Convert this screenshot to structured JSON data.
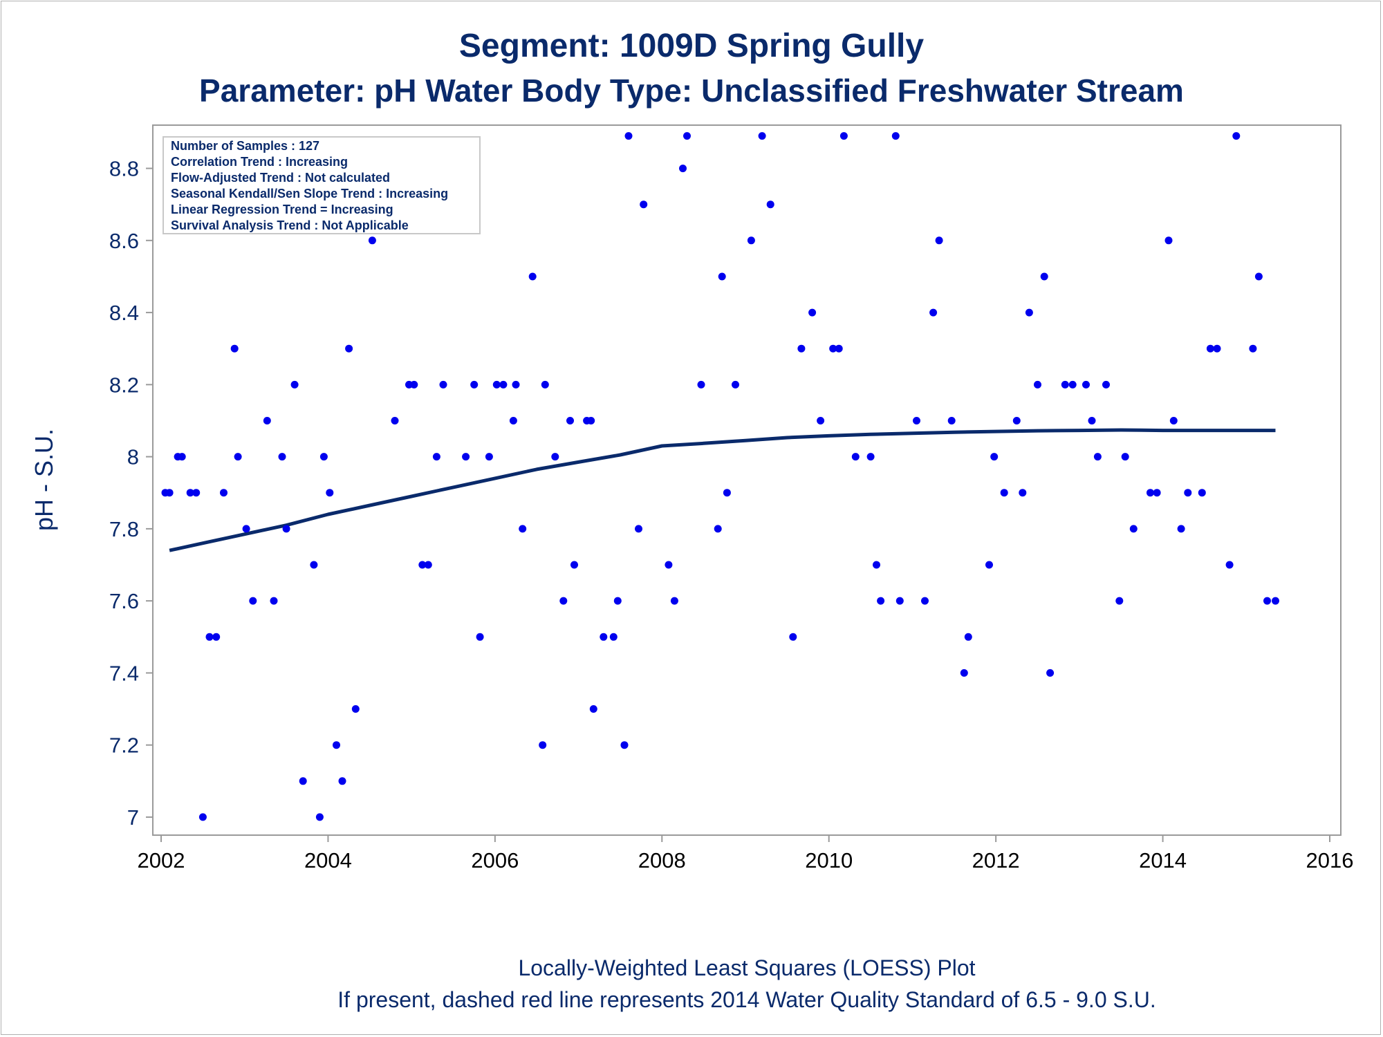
{
  "chart_data": {
    "type": "scatter",
    "title": "Segment: 1009D  Spring Gully",
    "subtitle": "Parameter: pH   Water Body Type: Unclassified Freshwater Stream",
    "xlabel": "",
    "ylabel": "pH - S.U.",
    "xlim": [
      2002,
      2016
    ],
    "ylim": [
      6.95,
      8.92
    ],
    "xticks": [
      2002,
      2004,
      2006,
      2008,
      2010,
      2012,
      2014,
      2016
    ],
    "yticks": [
      7,
      7.2,
      7.4,
      7.6,
      7.8,
      8,
      8.2,
      8.4,
      8.6,
      8.8
    ],
    "ytick_labels": [
      "7",
      "7.2",
      "7.4",
      "7.6",
      "7.8",
      "8",
      "8.2",
      "8.4",
      "8.6",
      "8.8"
    ],
    "grid": false,
    "legend": "none",
    "point_color": "#0000ee",
    "line_color": "#0a2a6b",
    "points": [
      [
        2002.05,
        7.9
      ],
      [
        2002.1,
        7.9
      ],
      [
        2002.2,
        8.0
      ],
      [
        2002.25,
        8.0
      ],
      [
        2002.35,
        7.9
      ],
      [
        2002.42,
        7.9
      ],
      [
        2002.5,
        7.0
      ],
      [
        2002.58,
        7.5
      ],
      [
        2002.66,
        7.5
      ],
      [
        2002.75,
        7.9
      ],
      [
        2002.88,
        8.3
      ],
      [
        2002.92,
        8.0
      ],
      [
        2003.02,
        7.8
      ],
      [
        2003.1,
        7.6
      ],
      [
        2003.27,
        8.1
      ],
      [
        2003.35,
        7.6
      ],
      [
        2003.45,
        8.0
      ],
      [
        2003.5,
        7.8
      ],
      [
        2003.6,
        8.2
      ],
      [
        2003.7,
        7.1
      ],
      [
        2003.83,
        7.7
      ],
      [
        2003.9,
        7.0
      ],
      [
        2003.95,
        8.0
      ],
      [
        2004.02,
        7.9
      ],
      [
        2004.1,
        7.2
      ],
      [
        2004.17,
        7.1
      ],
      [
        2004.25,
        8.3
      ],
      [
        2004.33,
        7.3
      ],
      [
        2004.53,
        8.6
      ],
      [
        2004.8,
        8.1
      ],
      [
        2004.97,
        8.2
      ],
      [
        2005.03,
        8.2
      ],
      [
        2005.13,
        7.7
      ],
      [
        2005.2,
        7.7
      ],
      [
        2005.3,
        8.0
      ],
      [
        2005.38,
        8.2
      ],
      [
        2005.65,
        8.0
      ],
      [
        2005.75,
        8.2
      ],
      [
        2005.82,
        7.5
      ],
      [
        2005.93,
        8.0
      ],
      [
        2006.02,
        8.2
      ],
      [
        2006.1,
        8.2
      ],
      [
        2006.22,
        8.1
      ],
      [
        2006.25,
        8.2
      ],
      [
        2006.33,
        7.8
      ],
      [
        2006.45,
        8.5
      ],
      [
        2006.57,
        7.2
      ],
      [
        2006.6,
        8.2
      ],
      [
        2006.72,
        8.0
      ],
      [
        2006.82,
        7.6
      ],
      [
        2006.9,
        8.1
      ],
      [
        2006.95,
        7.7
      ],
      [
        2007.1,
        8.1
      ],
      [
        2007.15,
        8.1
      ],
      [
        2007.18,
        7.3
      ],
      [
        2007.3,
        7.5
      ],
      [
        2007.42,
        7.5
      ],
      [
        2007.47,
        7.6
      ],
      [
        2007.55,
        7.2
      ],
      [
        2007.6,
        8.89
      ],
      [
        2007.72,
        7.8
      ],
      [
        2007.78,
        8.7
      ],
      [
        2008.08,
        7.7
      ],
      [
        2008.15,
        7.6
      ],
      [
        2008.25,
        8.8
      ],
      [
        2008.3,
        8.89
      ],
      [
        2008.47,
        8.2
      ],
      [
        2008.67,
        7.8
      ],
      [
        2008.72,
        8.5
      ],
      [
        2008.78,
        7.9
      ],
      [
        2008.88,
        8.2
      ],
      [
        2009.07,
        8.6
      ],
      [
        2009.2,
        8.89
      ],
      [
        2009.3,
        8.7
      ],
      [
        2009.57,
        7.5
      ],
      [
        2009.67,
        8.3
      ],
      [
        2009.8,
        8.4
      ],
      [
        2009.9,
        8.1
      ],
      [
        2010.05,
        8.3
      ],
      [
        2010.12,
        8.3
      ],
      [
        2010.18,
        8.89
      ],
      [
        2010.32,
        8.0
      ],
      [
        2010.5,
        8.0
      ],
      [
        2010.57,
        7.7
      ],
      [
        2010.62,
        7.6
      ],
      [
        2010.8,
        8.89
      ],
      [
        2010.85,
        7.6
      ],
      [
        2011.05,
        8.1
      ],
      [
        2011.15,
        7.6
      ],
      [
        2011.25,
        8.4
      ],
      [
        2011.32,
        8.6
      ],
      [
        2011.47,
        8.1
      ],
      [
        2011.62,
        7.4
      ],
      [
        2011.67,
        7.5
      ],
      [
        2011.92,
        7.7
      ],
      [
        2011.98,
        8.0
      ],
      [
        2012.1,
        7.9
      ],
      [
        2012.25,
        8.1
      ],
      [
        2012.32,
        7.9
      ],
      [
        2012.4,
        8.4
      ],
      [
        2012.5,
        8.2
      ],
      [
        2012.58,
        8.5
      ],
      [
        2012.65,
        7.4
      ],
      [
        2012.83,
        8.2
      ],
      [
        2012.92,
        8.2
      ],
      [
        2013.08,
        8.2
      ],
      [
        2013.15,
        8.1
      ],
      [
        2013.22,
        8.0
      ],
      [
        2013.32,
        8.2
      ],
      [
        2013.48,
        7.6
      ],
      [
        2013.55,
        8.0
      ],
      [
        2013.65,
        7.8
      ],
      [
        2013.85,
        7.9
      ],
      [
        2013.93,
        7.9
      ],
      [
        2014.07,
        8.6
      ],
      [
        2014.13,
        8.1
      ],
      [
        2014.22,
        7.8
      ],
      [
        2014.3,
        7.9
      ],
      [
        2014.47,
        7.9
      ],
      [
        2014.57,
        8.3
      ],
      [
        2014.65,
        8.3
      ],
      [
        2014.8,
        7.7
      ],
      [
        2014.88,
        8.89
      ],
      [
        2015.08,
        8.3
      ],
      [
        2015.15,
        8.5
      ],
      [
        2015.25,
        7.6
      ],
      [
        2015.35,
        7.6
      ]
    ],
    "loess": [
      [
        2002.1,
        7.74
      ],
      [
        2002.5,
        7.76
      ],
      [
        2003.0,
        7.785
      ],
      [
        2003.5,
        7.81
      ],
      [
        2004.0,
        7.84
      ],
      [
        2004.5,
        7.865
      ],
      [
        2005.0,
        7.89
      ],
      [
        2005.5,
        7.915
      ],
      [
        2006.0,
        7.94
      ],
      [
        2006.5,
        7.965
      ],
      [
        2007.0,
        7.985
      ],
      [
        2007.5,
        8.005
      ],
      [
        2008.0,
        8.03
      ],
      [
        2008.5,
        8.037
      ],
      [
        2009.0,
        8.045
      ],
      [
        2009.5,
        8.053
      ],
      [
        2010.0,
        8.058
      ],
      [
        2010.5,
        8.062
      ],
      [
        2011.0,
        8.065
      ],
      [
        2011.5,
        8.068
      ],
      [
        2012.0,
        8.07
      ],
      [
        2012.5,
        8.072
      ],
      [
        2013.0,
        8.073
      ],
      [
        2013.5,
        8.074
      ],
      [
        2014.0,
        8.073
      ],
      [
        2014.5,
        8.073
      ],
      [
        2015.0,
        8.073
      ],
      [
        2015.35,
        8.073
      ]
    ]
  },
  "stats_box": {
    "lines": [
      "Number of Samples : 127",
      "Correlation Trend : Increasing",
      "Flow-Adjusted Trend : Not calculated",
      "Seasonal Kendall/Sen Slope Trend : Increasing",
      "Linear Regression Trend = Increasing",
      "Survival Analysis Trend : Not Applicable"
    ]
  },
  "footnotes": {
    "line1": "Locally-Weighted Least Squares (LOESS) Plot",
    "line2": "If present, dashed red line represents 2014 Water Quality Standard of 6.5 - 9.0 S.U."
  }
}
